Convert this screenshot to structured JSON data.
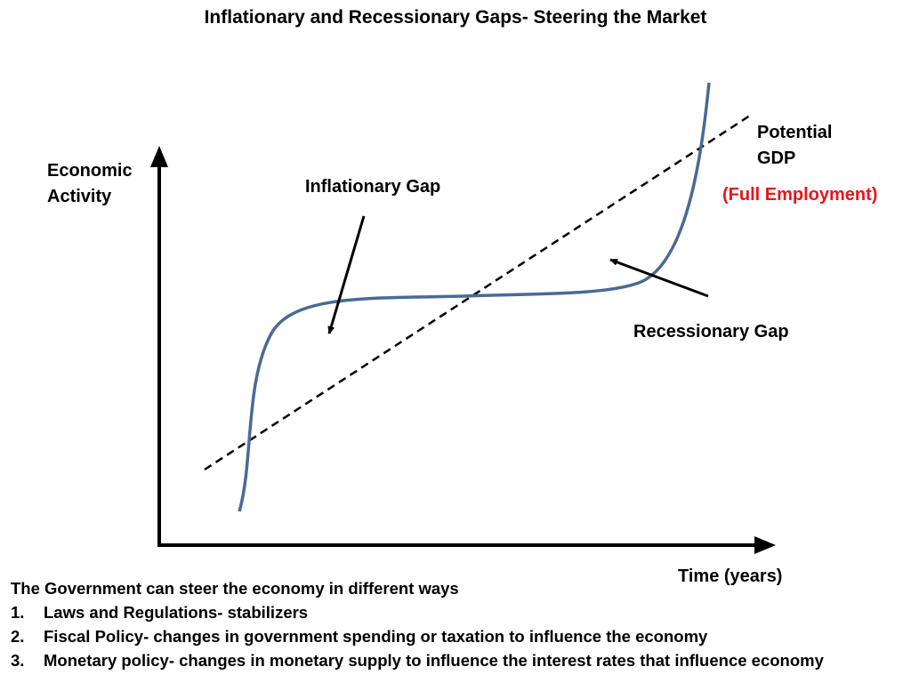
{
  "title": "Inflationary and Recessionary Gaps- Steering the Market",
  "axes": {
    "y_label_line1": "Economic",
    "y_label_line2": "Activity",
    "x_label": "Time (years)"
  },
  "labels": {
    "potential_line1": "Potential",
    "potential_line2": "GDP",
    "full_employment": "(Full Employment)",
    "inflationary_gap": "Inflationary Gap",
    "recessionary_gap": "Recessionary Gap"
  },
  "colors": {
    "curve": "#4a6a94",
    "trend": "#000000",
    "highlight": "#e8141b"
  },
  "notes": {
    "intro": "The Government can steer the economy in different ways",
    "items": [
      {
        "num": "1.",
        "text": "Laws and Regulations- stabilizers"
      },
      {
        "num": "2.",
        "text": "Fiscal Policy- changes in government spending or taxation to influence the economy"
      },
      {
        "num": "3.",
        "text": "Monetary policy- changes in monetary supply to influence  the interest rates that influence economy"
      }
    ]
  }
}
